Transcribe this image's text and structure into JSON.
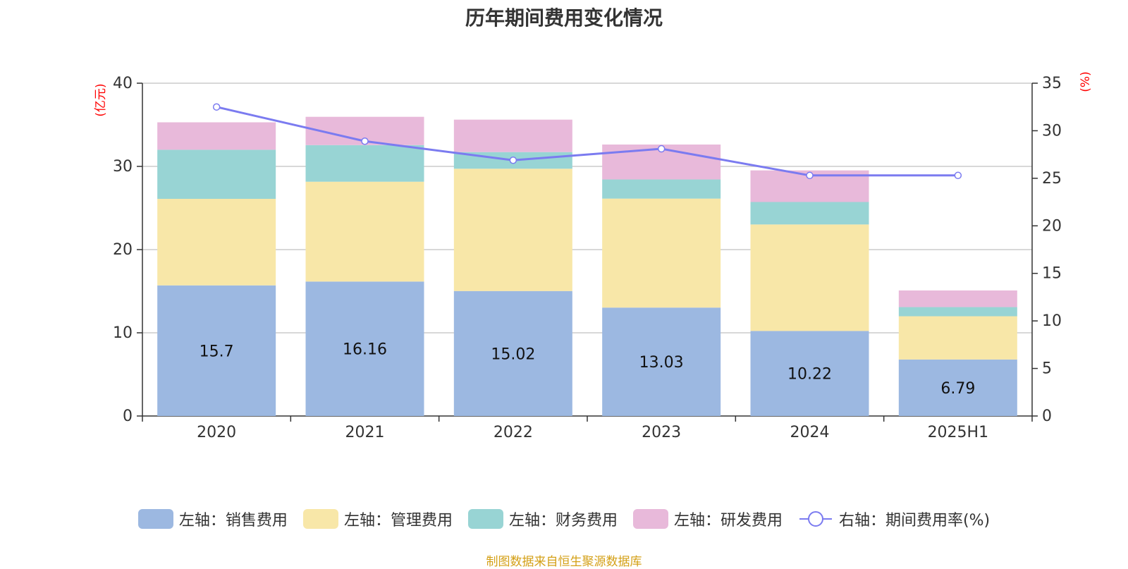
{
  "chart_data": {
    "type": "bar",
    "title": "历年期间费用变化情况",
    "categories": [
      "2020",
      "2021",
      "2022",
      "2023",
      "2024",
      "2025H1"
    ],
    "left_axis": {
      "unit_label": "(亿元)",
      "ylim": [
        0,
        40
      ],
      "ticks": [
        0,
        10,
        20,
        30,
        40
      ]
    },
    "right_axis": {
      "unit_label": "(%)",
      "ylim": [
        0,
        35
      ],
      "ticks": [
        0,
        5,
        10,
        15,
        20,
        25,
        30,
        35
      ]
    },
    "grid": true,
    "legend_position": "bottom",
    "series": [
      {
        "name": "左轴：销售费用",
        "type": "bar",
        "axis": "left",
        "color": "#9cb8e1",
        "values": [
          15.7,
          16.16,
          15.02,
          13.03,
          10.22,
          6.79
        ],
        "show_labels": true
      },
      {
        "name": "左轴：管理费用",
        "type": "bar",
        "axis": "left",
        "color": "#f8e7a8",
        "values": [
          10.4,
          12.0,
          14.7,
          13.1,
          12.8,
          5.2
        ]
      },
      {
        "name": "左轴：财务费用",
        "type": "bar",
        "axis": "left",
        "color": "#98d4d4",
        "values": [
          5.9,
          4.4,
          2.0,
          2.3,
          2.7,
          1.1
        ]
      },
      {
        "name": "左轴：研发费用",
        "type": "bar",
        "axis": "left",
        "color": "#e8b9da",
        "values": [
          3.3,
          3.4,
          3.9,
          4.2,
          3.8,
          2.0
        ]
      },
      {
        "name": "右轴：期间费用率(%)",
        "type": "line",
        "axis": "right",
        "color": "#7b7bf0",
        "values": [
          32.5,
          28.9,
          26.9,
          28.1,
          25.3,
          25.3
        ]
      }
    ]
  },
  "source_note": "制图数据来自恒生聚源数据库"
}
